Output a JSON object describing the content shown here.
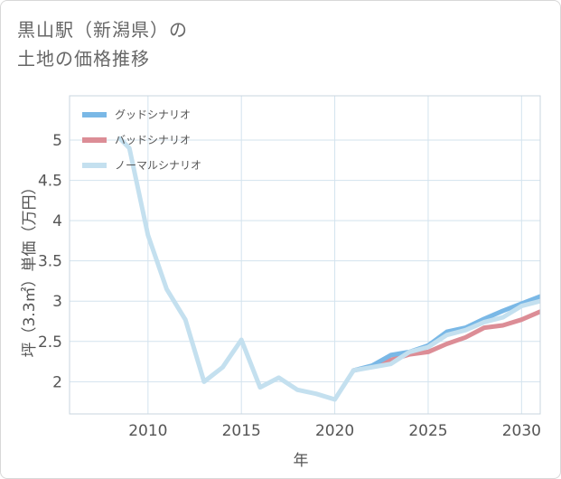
{
  "title_line1": "黒山駅（新潟県）の",
  "title_line2": "土地の価格推移",
  "chart_data": {
    "type": "line",
    "xlabel": "年",
    "ylabel": "坪（3.3㎡）単価（万円）",
    "xlim": [
      2005.8,
      2031
    ],
    "ylim": [
      1.6,
      5.55
    ],
    "xticks": [
      2010,
      2015,
      2020,
      2025,
      2030
    ],
    "yticks": [
      2,
      2.5,
      3,
      3.5,
      4,
      4.5,
      5
    ],
    "xtick_labels": [
      "2010",
      "2015",
      "2020",
      "2025",
      "2030"
    ],
    "ytick_labels": [
      "2",
      "2.5",
      "3",
      "3.5",
      "4",
      "4.5",
      "5"
    ],
    "grid": true,
    "legend_position": "top-left",
    "series": [
      {
        "name": "グッドシナリオ",
        "color": "#7ab8e6",
        "x": [
          2021,
          2022,
          2023,
          2024,
          2025,
          2026,
          2027,
          2028,
          2029,
          2030,
          2031
        ],
        "values": [
          2.14,
          2.2,
          2.33,
          2.37,
          2.45,
          2.62,
          2.67,
          2.78,
          2.88,
          2.97,
          3.06
        ]
      },
      {
        "name": "バッドシナリオ",
        "color": "#dc8d96",
        "x": [
          2021,
          2022,
          2023,
          2024,
          2025,
          2026,
          2027,
          2028,
          2029,
          2030,
          2031
        ],
        "values": [
          2.14,
          2.19,
          2.27,
          2.34,
          2.37,
          2.47,
          2.55,
          2.67,
          2.7,
          2.77,
          2.87
        ]
      },
      {
        "name": "ノーマルシナリオ",
        "color": "#c4e0ef",
        "x": [
          2008.5,
          2009,
          2010,
          2011,
          2012,
          2013,
          2014,
          2015,
          2016,
          2017,
          2018,
          2019,
          2020,
          2021,
          2022,
          2023,
          2024,
          2025,
          2026,
          2027,
          2028,
          2029,
          2030,
          2031
        ],
        "values": [
          5.02,
          4.9,
          3.82,
          3.15,
          2.77,
          2.0,
          2.18,
          2.52,
          1.93,
          2.05,
          1.9,
          1.85,
          1.78,
          2.14,
          2.18,
          2.22,
          2.37,
          2.43,
          2.58,
          2.64,
          2.74,
          2.8,
          2.94,
          3.0
        ]
      }
    ]
  }
}
